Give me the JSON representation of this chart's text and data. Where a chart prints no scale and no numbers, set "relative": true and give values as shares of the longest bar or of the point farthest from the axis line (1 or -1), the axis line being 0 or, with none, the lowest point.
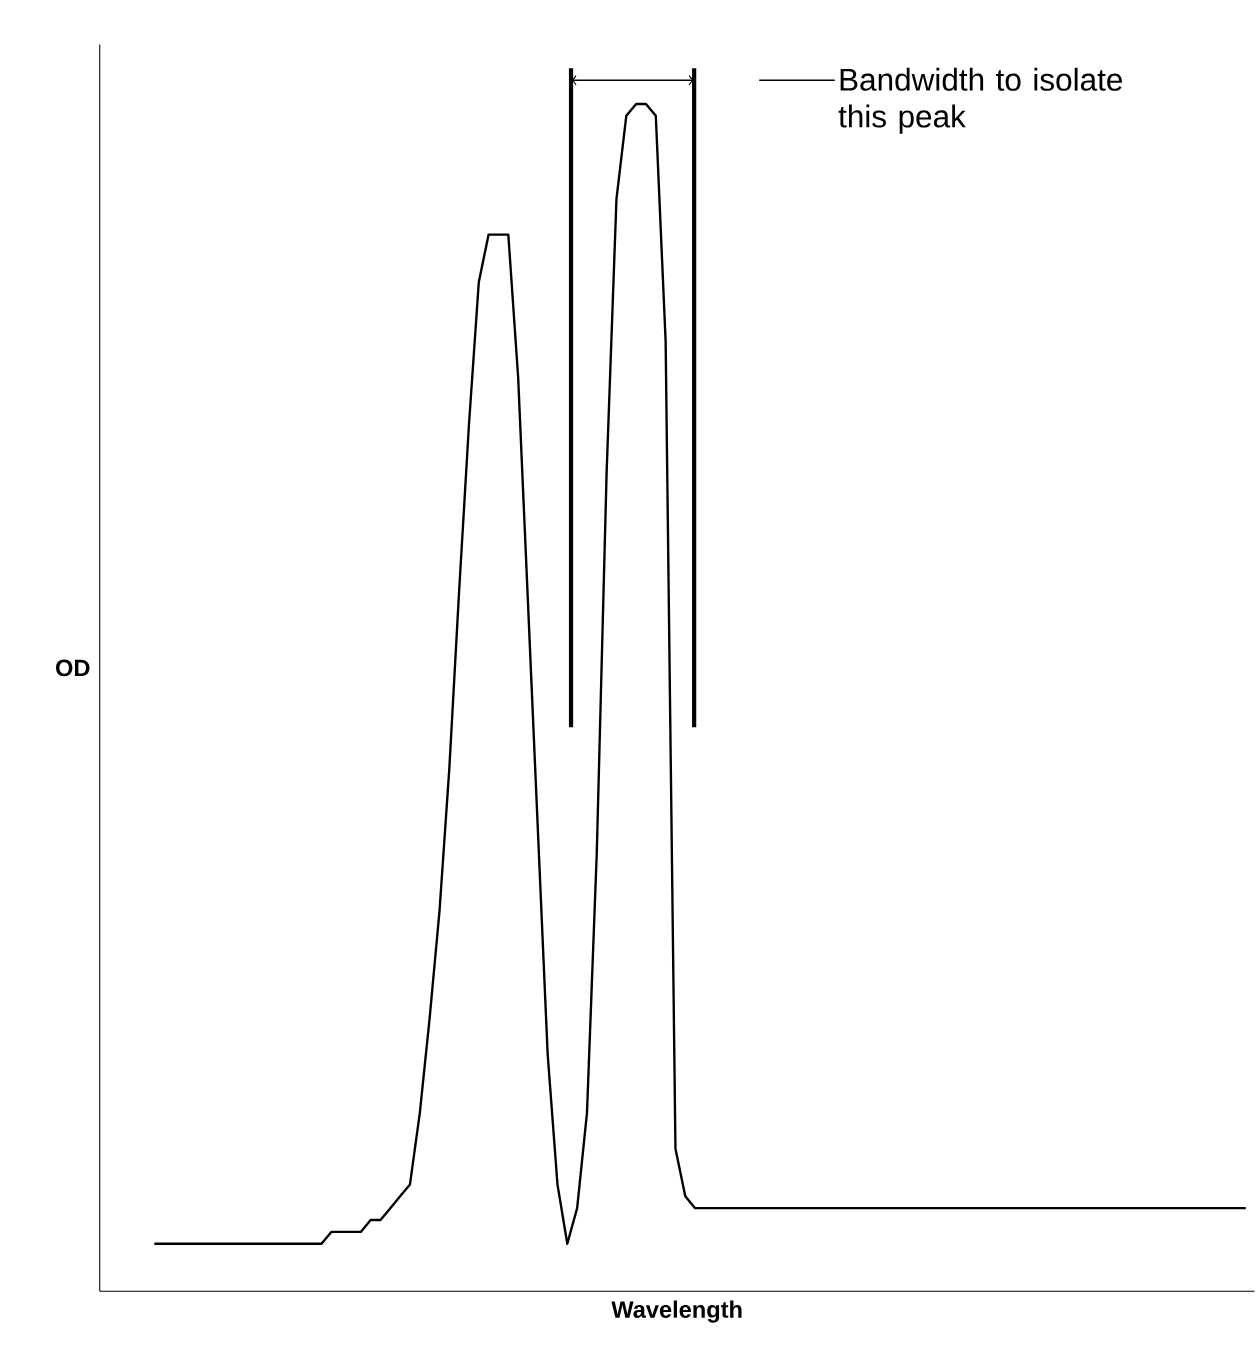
{
  "chart_data": {
    "type": "line",
    "relative": true,
    "xlabel": "Wavelength",
    "ylabel": "OD",
    "marker": "none",
    "line_style": "solid",
    "categories": [
      null,
      null,
      null,
      null,
      null,
      null,
      null,
      null,
      null,
      null,
      null,
      null,
      null,
      null,
      null,
      null,
      null,
      null,
      null,
      null,
      null,
      null,
      null,
      null,
      null,
      null,
      null,
      null,
      null,
      null,
      null,
      null,
      null,
      null,
      null,
      null,
      null,
      null,
      null,
      null,
      null,
      null,
      null,
      null,
      null,
      null,
      null,
      null,
      null,
      null,
      null,
      null,
      null,
      null,
      null,
      null,
      null,
      null,
      null,
      null,
      null,
      null,
      null,
      null,
      null,
      null,
      null,
      null,
      null,
      null,
      null,
      null,
      null,
      null,
      null,
      null,
      null,
      null,
      null,
      null,
      null,
      null,
      null,
      null,
      null,
      null,
      null,
      null,
      null,
      null,
      null,
      null,
      null,
      null,
      null,
      null,
      null,
      null,
      null,
      null,
      null,
      null,
      null,
      null,
      null,
      null,
      null,
      null,
      null,
      null,
      null,
      null
    ],
    "series": [
      {
        "color": "#000000",
        "values": [
          0.04,
          0.04,
          0.04,
          0.04,
          0.04,
          0.04,
          0.04,
          0.04,
          0.04,
          0.04,
          0.04,
          0.04,
          0.04,
          0.04,
          0.04,
          0.04,
          0.04,
          0.04,
          0.05,
          0.05,
          0.05,
          0.05,
          0.06,
          0.06,
          0.07,
          0.08,
          0.09,
          0.15,
          0.23,
          0.32,
          0.44,
          0.59,
          0.73,
          0.85,
          0.89,
          0.89,
          0.89,
          0.77,
          0.58,
          0.39,
          0.2,
          0.09,
          0.04,
          0.07,
          0.15,
          0.37,
          0.69,
          0.92,
          0.99,
          1.0,
          1.0,
          0.99,
          0.8,
          0.12,
          0.08,
          0.07,
          0.07,
          0.07,
          0.07,
          0.07,
          0.07,
          0.07,
          0.07,
          0.07,
          0.07,
          0.07,
          0.07,
          0.07,
          0.07,
          0.07,
          0.07,
          0.07,
          0.07,
          0.07,
          0.07,
          0.07,
          0.07,
          0.07,
          0.07,
          0.07,
          0.07,
          0.07,
          0.07,
          0.07,
          0.07,
          0.07,
          0.07,
          0.07,
          0.07,
          0.07,
          0.07,
          0.07,
          0.07,
          0.07,
          0.07,
          0.07,
          0.07,
          0.07,
          0.07,
          0.07,
          0.07,
          0.07,
          0.07,
          0.07,
          0.07,
          0.07,
          0.07,
          0.07,
          0.07,
          0.07,
          0.07,
          0.07
        ]
      }
    ],
    "annotations": [
      "Bandwidth to isolate this peak"
    ]
  }
}
